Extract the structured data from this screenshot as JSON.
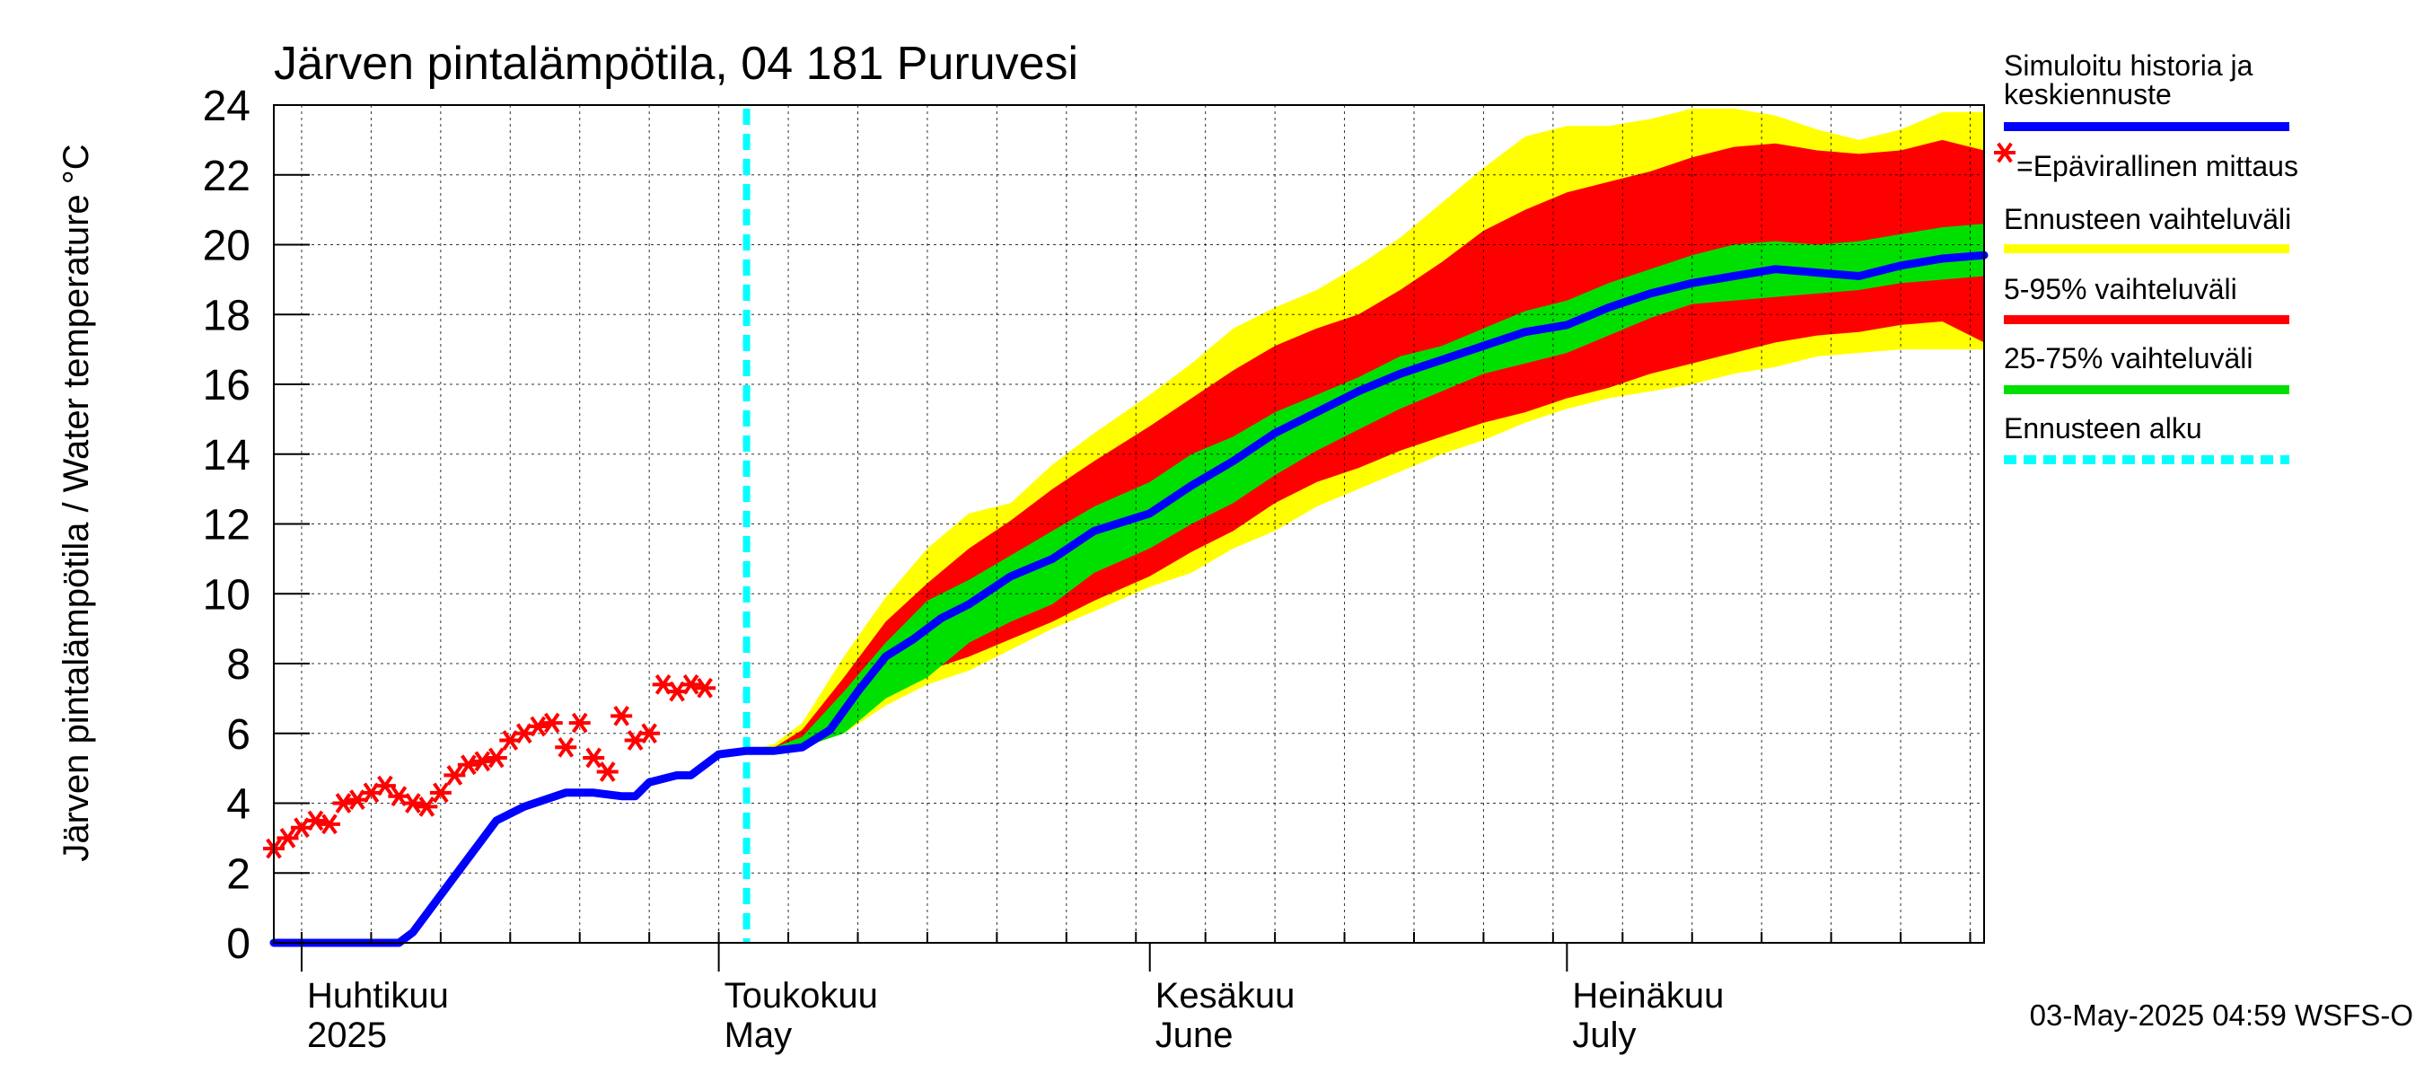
{
  "chart_data": {
    "type": "line",
    "title": "Järven pintalämpötila, 04 181 Puruvesi",
    "ylabel": "Järven pintalämpötila / Water temperature °C",
    "ylim": [
      0,
      24
    ],
    "yticks": [
      0,
      2,
      4,
      6,
      8,
      10,
      12,
      14,
      16,
      18,
      20,
      22,
      24
    ],
    "x_range": [
      "2025-03-30",
      "2025-07-31"
    ],
    "x_month_labels": [
      {
        "date": "2025-04-01",
        "fi": "Huhtikuu",
        "en": "2025"
      },
      {
        "date": "2025-05-01",
        "fi": "Toukokuu",
        "en": "May"
      },
      {
        "date": "2025-06-01",
        "fi": "Kesäkuu",
        "en": "June"
      },
      {
        "date": "2025-07-01",
        "fi": "Heinäkuu",
        "en": "July"
      }
    ],
    "forecast_start": "2025-05-03",
    "grid": true,
    "legend_position": "right",
    "legend": [
      {
        "label": "Simuloitu historia ja keskiennuste",
        "color": "#0000ff",
        "style": "line"
      },
      {
        "label": "=Epävirallinen mittaus",
        "color": "#ff0000",
        "style": "star"
      },
      {
        "label": "Ennusteen vaihteluväli",
        "color": "#ffff00",
        "style": "line"
      },
      {
        "label": "5-95% vaihteluväli",
        "color": "#ff0000",
        "style": "line"
      },
      {
        "label": "25-75% vaihteluväli",
        "color": "#00e000",
        "style": "line"
      },
      {
        "label": "Ennusteen alku",
        "color": "#00ffff",
        "style": "dashed"
      }
    ],
    "footer": "03-May-2025 04:59 WSFS-O",
    "series": [
      {
        "name": "Simuloitu historia ja keskiennuste",
        "color": "#0000ff",
        "x": [
          "2025-03-30",
          "2025-04-01",
          "2025-04-05",
          "2025-04-08",
          "2025-04-09",
          "2025-04-12",
          "2025-04-15",
          "2025-04-17",
          "2025-04-20",
          "2025-04-22",
          "2025-04-24",
          "2025-04-25",
          "2025-04-26",
          "2025-04-28",
          "2025-04-29",
          "2025-05-01",
          "2025-05-03",
          "2025-05-05",
          "2025-05-07",
          "2025-05-09",
          "2025-05-11",
          "2025-05-13",
          "2025-05-15",
          "2025-05-17",
          "2025-05-19",
          "2025-05-22",
          "2025-05-25",
          "2025-05-28",
          "2025-06-01",
          "2025-06-04",
          "2025-06-07",
          "2025-06-10",
          "2025-06-13",
          "2025-06-16",
          "2025-06-19",
          "2025-06-22",
          "2025-06-25",
          "2025-06-28",
          "2025-07-01",
          "2025-07-04",
          "2025-07-07",
          "2025-07-10",
          "2025-07-13",
          "2025-07-16",
          "2025-07-19",
          "2025-07-22",
          "2025-07-25",
          "2025-07-28",
          "2025-07-31"
        ],
        "y": [
          0,
          0,
          0,
          0,
          0.3,
          1.9,
          3.5,
          3.9,
          4.3,
          4.3,
          4.2,
          4.2,
          4.6,
          4.8,
          4.8,
          5.4,
          5.5,
          5.5,
          5.6,
          6.1,
          7.2,
          8.2,
          8.7,
          9.3,
          9.7,
          10.5,
          11.0,
          11.8,
          12.3,
          13.1,
          13.8,
          14.6,
          15.2,
          15.8,
          16.3,
          16.7,
          17.1,
          17.5,
          17.7,
          18.2,
          18.6,
          18.9,
          19.1,
          19.3,
          19.2,
          19.1,
          19.4,
          19.6,
          19.7
        ]
      },
      {
        "name": "=Epävirallinen mittaus",
        "color": "#ff0000",
        "x": [
          "2025-03-30",
          "2025-03-31",
          "2025-04-01",
          "2025-04-02",
          "2025-04-03",
          "2025-04-04",
          "2025-04-05",
          "2025-04-06",
          "2025-04-07",
          "2025-04-08",
          "2025-04-09",
          "2025-04-10",
          "2025-04-11",
          "2025-04-12",
          "2025-04-13",
          "2025-04-14",
          "2025-04-15",
          "2025-04-16",
          "2025-04-17",
          "2025-04-18",
          "2025-04-19",
          "2025-04-20",
          "2025-04-21",
          "2025-04-22",
          "2025-04-23",
          "2025-04-24",
          "2025-04-25",
          "2025-04-26",
          "2025-04-27",
          "2025-04-28",
          "2025-04-29",
          "2025-04-30"
        ],
        "y": [
          2.7,
          3.0,
          3.3,
          3.5,
          3.4,
          4.0,
          4.1,
          4.3,
          4.5,
          4.2,
          4.0,
          3.9,
          4.3,
          4.8,
          5.1,
          5.2,
          5.3,
          5.8,
          6.0,
          6.2,
          6.3,
          5.6,
          6.3,
          5.3,
          4.9,
          6.5,
          5.8,
          6.0,
          7.4,
          7.2,
          7.4,
          7.3
        ]
      }
    ],
    "bands": [
      {
        "name": "Ennusteen vaihteluväli",
        "color": "#ffff00",
        "x": [
          "2025-05-03",
          "2025-05-05",
          "2025-05-07",
          "2025-05-10",
          "2025-05-13",
          "2025-05-16",
          "2025-05-19",
          "2025-05-22",
          "2025-05-25",
          "2025-05-28",
          "2025-06-01",
          "2025-06-04",
          "2025-06-07",
          "2025-06-10",
          "2025-06-13",
          "2025-06-16",
          "2025-06-19",
          "2025-06-22",
          "2025-06-25",
          "2025-06-28",
          "2025-07-01",
          "2025-07-04",
          "2025-07-07",
          "2025-07-10",
          "2025-07-13",
          "2025-07-16",
          "2025-07-19",
          "2025-07-22",
          "2025-07-25",
          "2025-07-28",
          "2025-07-31"
        ],
        "low": [
          5.5,
          5.5,
          5.6,
          6.0,
          6.8,
          7.4,
          7.8,
          8.4,
          9.0,
          9.5,
          10.2,
          10.6,
          11.3,
          11.8,
          12.5,
          13.0,
          13.5,
          14.0,
          14.4,
          14.9,
          15.3,
          15.6,
          15.8,
          16.0,
          16.3,
          16.5,
          16.8,
          16.9,
          17.0,
          17.0,
          17.0
        ],
        "high": [
          5.5,
          5.7,
          6.3,
          8.2,
          9.9,
          11.3,
          12.3,
          12.6,
          13.7,
          14.6,
          15.7,
          16.6,
          17.6,
          18.2,
          18.7,
          19.4,
          20.2,
          21.2,
          22.2,
          23.1,
          23.4,
          23.4,
          23.6,
          23.9,
          23.9,
          23.7,
          23.3,
          23.0,
          23.3,
          23.8,
          23.8
        ]
      },
      {
        "name": "5-95% vaihteluväli",
        "color": "#ff0000",
        "x": [
          "2025-05-03",
          "2025-05-05",
          "2025-05-07",
          "2025-05-10",
          "2025-05-13",
          "2025-05-16",
          "2025-05-19",
          "2025-05-22",
          "2025-05-25",
          "2025-05-28",
          "2025-06-01",
          "2025-06-04",
          "2025-06-07",
          "2025-06-10",
          "2025-06-13",
          "2025-06-16",
          "2025-06-19",
          "2025-06-22",
          "2025-06-25",
          "2025-06-28",
          "2025-07-01",
          "2025-07-04",
          "2025-07-07",
          "2025-07-10",
          "2025-07-13",
          "2025-07-16",
          "2025-07-19",
          "2025-07-22",
          "2025-07-25",
          "2025-07-28",
          "2025-07-31"
        ],
        "low": [
          5.5,
          5.5,
          5.7,
          6.4,
          7.2,
          7.8,
          8.2,
          8.7,
          9.2,
          9.8,
          10.5,
          11.2,
          11.8,
          12.6,
          13.2,
          13.6,
          14.1,
          14.5,
          14.9,
          15.2,
          15.6,
          15.9,
          16.3,
          16.6,
          16.9,
          17.2,
          17.4,
          17.5,
          17.7,
          17.8,
          17.2
        ],
        "high": [
          5.5,
          5.6,
          6.1,
          7.6,
          9.2,
          10.3,
          11.3,
          12.1,
          13.0,
          13.8,
          14.8,
          15.6,
          16.4,
          17.1,
          17.6,
          18.0,
          18.7,
          19.5,
          20.4,
          21.0,
          21.5,
          21.8,
          22.1,
          22.5,
          22.8,
          22.9,
          22.7,
          22.6,
          22.7,
          23.0,
          22.7
        ]
      },
      {
        "name": "25-75% vaihteluväli",
        "color": "#00e000",
        "x": [
          "2025-05-03",
          "2025-05-05",
          "2025-05-07",
          "2025-05-10",
          "2025-05-13",
          "2025-05-16",
          "2025-05-19",
          "2025-05-22",
          "2025-05-25",
          "2025-05-28",
          "2025-06-01",
          "2025-06-04",
          "2025-06-07",
          "2025-06-10",
          "2025-06-13",
          "2025-06-16",
          "2025-06-19",
          "2025-06-22",
          "2025-06-25",
          "2025-06-28",
          "2025-07-01",
          "2025-07-04",
          "2025-07-07",
          "2025-07-10",
          "2025-07-13",
          "2025-07-16",
          "2025-07-19",
          "2025-07-22",
          "2025-07-25",
          "2025-07-28",
          "2025-07-31"
        ],
        "low": [
          5.5,
          5.5,
          5.6,
          6.0,
          7.0,
          7.6,
          8.6,
          9.2,
          9.7,
          10.6,
          11.3,
          12.0,
          12.6,
          13.4,
          14.1,
          14.7,
          15.3,
          15.8,
          16.3,
          16.6,
          16.9,
          17.4,
          17.9,
          18.3,
          18.4,
          18.5,
          18.6,
          18.7,
          18.9,
          19.0,
          19.1
        ],
        "high": [
          5.5,
          5.6,
          5.9,
          7.2,
          8.6,
          9.8,
          10.4,
          11.1,
          11.8,
          12.5,
          13.2,
          14.0,
          14.5,
          15.2,
          15.7,
          16.2,
          16.8,
          17.1,
          17.6,
          18.1,
          18.4,
          18.9,
          19.3,
          19.7,
          20.0,
          20.1,
          20.0,
          20.1,
          20.3,
          20.5,
          20.6
        ]
      }
    ]
  }
}
